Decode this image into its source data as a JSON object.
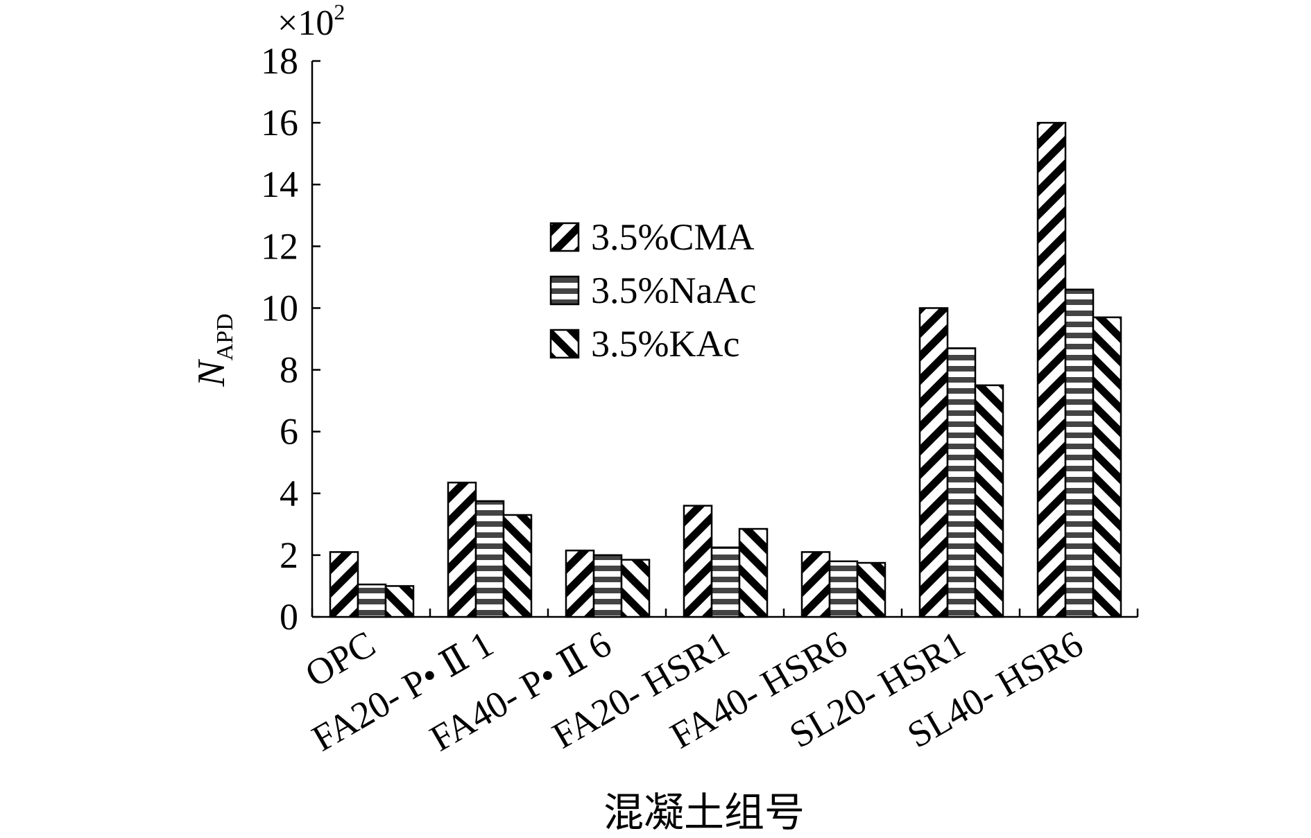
{
  "chart_data": {
    "type": "bar",
    "title": "",
    "xlabel": "混凝土组号",
    "ylabel": {
      "main": "N",
      "sub": "APD"
    },
    "y_multiplier": {
      "base": "×10",
      "exp": "2"
    },
    "ylim": [
      0,
      18
    ],
    "yticks": [
      "0",
      "2",
      "4",
      "6",
      "8",
      "10",
      "12",
      "14",
      "16",
      "18"
    ],
    "categories": [
      "OPC",
      "FA20- P• Ⅱ 1",
      "FA40- P• Ⅱ 6",
      "FA20- HSR1",
      "FA40- HSR6",
      "SL20- HSR1",
      "SL40- HSR6"
    ],
    "series": [
      {
        "name": "3.5%CMA",
        "pattern": "back-diagonal",
        "values": [
          2.1,
          4.35,
          2.15,
          3.6,
          2.1,
          10.0,
          16.0
        ]
      },
      {
        "name": "3.5%NaAc",
        "pattern": "horizontal",
        "values": [
          1.05,
          3.75,
          2.0,
          2.25,
          1.8,
          8.7,
          10.6
        ]
      },
      {
        "name": "3.5%KAc",
        "pattern": "forward-diagonal",
        "values": [
          1.0,
          3.3,
          1.85,
          2.85,
          1.75,
          7.5,
          9.7
        ]
      }
    ],
    "grid": false,
    "legend": "upper-center"
  }
}
